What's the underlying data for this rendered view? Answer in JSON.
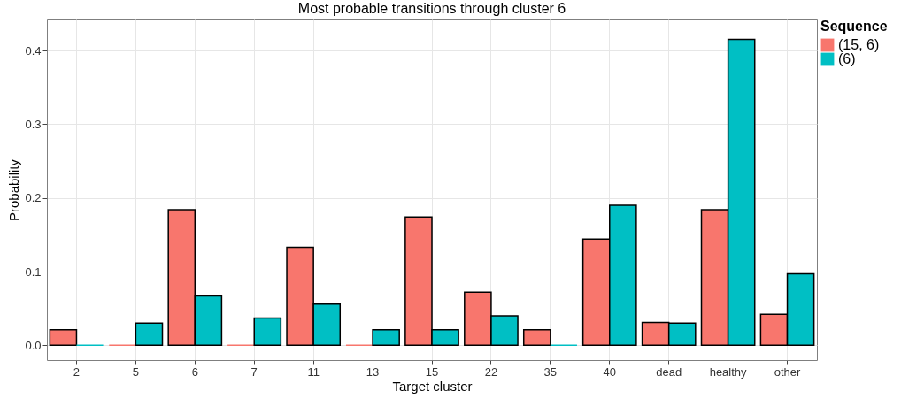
{
  "chart_data": {
    "type": "bar",
    "title": "Most probable transitions through cluster 6",
    "xlabel": "Target cluster",
    "ylabel": "Probability",
    "legend_title": "Sequence",
    "categories": [
      "2",
      "5",
      "6",
      "7",
      "11",
      "13",
      "15",
      "22",
      "35",
      "40",
      "dead",
      "healthy",
      "other"
    ],
    "series": [
      {
        "name": "(15, 6)",
        "color": "#f8766d",
        "values": [
          0.021,
          0,
          0.184,
          0,
          0.133,
          0,
          0.174,
          0.072,
          0.021,
          0.144,
          0.031,
          0.184,
          0.042
        ]
      },
      {
        "name": "(6)",
        "color": "#00bfc4",
        "values": [
          0,
          0.03,
          0.067,
          0.037,
          0.056,
          0.021,
          0.021,
          0.04,
          0,
          0.19,
          0.03,
          0.415,
          0.097
        ]
      }
    ],
    "ylim": [
      -0.02,
      0.442
    ],
    "yticks": [
      {
        "value": 0,
        "label": "0.0"
      },
      0.1,
      0.2,
      0.3,
      0.4
    ],
    "grid": true,
    "legend": "right"
  }
}
